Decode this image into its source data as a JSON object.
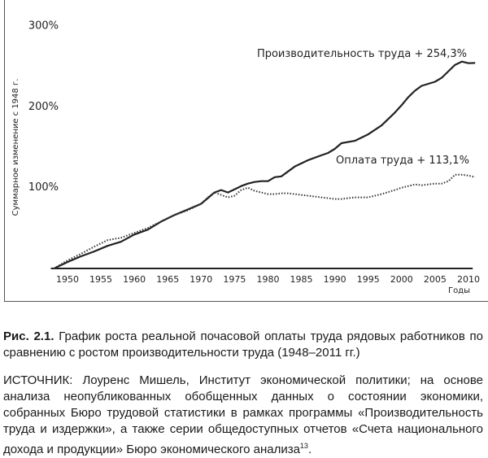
{
  "chart_data": {
    "type": "line",
    "y_label": "Суммарное изменение с 1948 г.",
    "x_label": "Годы",
    "annotations": [
      "Производительность труда + 254,3%",
      "Оплата труда + 113,1%"
    ],
    "x": [
      1948,
      1950,
      1952,
      1954,
      1956,
      1958,
      1960,
      1962,
      1964,
      1966,
      1968,
      1970,
      1971,
      1972,
      1973,
      1974,
      1975,
      1976,
      1977,
      1978,
      1979,
      1980,
      1981,
      1982,
      1983,
      1984,
      1986,
      1988,
      1989,
      1990,
      1991,
      1993,
      1995,
      1997,
      1999,
      2000,
      2001,
      2002,
      2003,
      2005,
      2006,
      2007,
      2008,
      2009,
      2010,
      2011
    ],
    "series": [
      {
        "name": "Производительность труда",
        "color": "#222222",
        "style": "solid",
        "values": [
          0,
          8,
          15,
          21,
          28,
          33,
          42,
          48,
          58,
          66,
          73,
          80,
          87,
          94,
          97,
          94,
          98,
          102,
          105,
          107,
          108,
          108,
          113,
          114,
          120,
          126,
          134,
          140,
          143,
          148,
          155,
          158,
          166,
          177,
          193,
          202,
          212,
          220,
          226,
          231,
          236,
          244,
          252,
          256,
          254,
          254.3
        ]
      },
      {
        "name": "Оплата труда",
        "color": "#333333",
        "style": "dotted",
        "values": [
          0,
          10,
          18,
          27,
          35,
          38,
          44,
          50,
          58,
          66,
          72,
          80,
          88,
          94,
          91,
          88,
          90,
          97,
          100,
          96,
          94,
          92,
          92,
          93,
          93,
          92,
          90,
          88,
          87,
          86,
          86,
          88,
          88,
          92,
          97,
          100,
          102,
          104,
          103,
          105,
          105,
          108,
          116,
          116,
          115,
          113.1
        ]
      }
    ],
    "xlim": [
      1946,
      2012
    ],
    "xticks": [
      1950,
      1955,
      1960,
      1965,
      1970,
      1975,
      1980,
      1985,
      1990,
      1995,
      2000,
      2005,
      2010
    ],
    "ylim": [
      0,
      300
    ],
    "yticks": [
      {
        "value": 100,
        "label": "100%"
      },
      {
        "value": 200,
        "label": "200%"
      },
      {
        "value": 300,
        "label": "300%"
      }
    ]
  },
  "caption": {
    "label": "Рис. 2.1.",
    "text": "График роста реальной почасовой оплаты труда рядовых работников по сравнению с ростом производительности труда (1948–2011 гг.)"
  },
  "source": {
    "text": "ИСТОЧНИК: Лоуренс Мишель, Институт экономической политики; на основе анализа неопубликованных обобщенных данных о состоянии экономики, собранных Бюро трудовой статистики в рамках программы «Производительность труда и издержки», а также серии общедоступных отчетов «Счета национального дохода и продукции» Бюро экономического анализа",
    "note": "13",
    "tail": "."
  }
}
